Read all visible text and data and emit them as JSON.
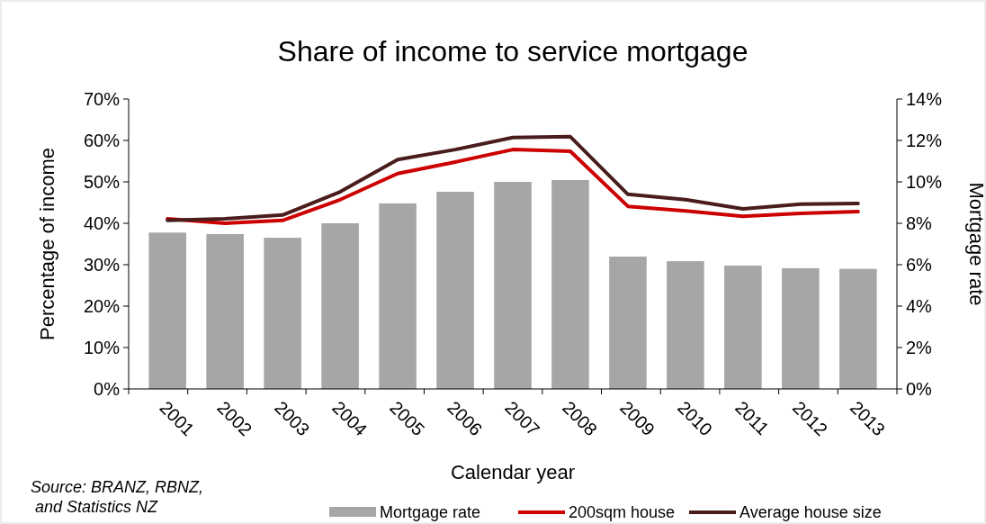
{
  "chart_data": {
    "type": "bar",
    "title": "Share of income to service mortgage",
    "xlabel": "Calendar year",
    "ylabel": "Percentage of income",
    "y2label": "Mortgage rate",
    "annotations": [
      "Source: BRANZ, RBNZ,\n and Statistics NZ"
    ],
    "categories": [
      "2001",
      "2002",
      "2003",
      "2004",
      "2005",
      "2006",
      "2007",
      "2008",
      "2009",
      "2010",
      "2011",
      "2012",
      "2013"
    ],
    "series": [
      {
        "name": "Mortgage rate",
        "axis": "y2",
        "color": "#a6a6a6",
        "values": [
          7.55,
          7.48,
          7.3,
          8.0,
          8.96,
          9.52,
          10.0,
          10.09,
          6.39,
          6.17,
          5.96,
          5.83,
          5.8
        ]
      },
      {
        "name": "200sqm house",
        "type": "line",
        "color": "#cc0000",
        "values": [
          41.1,
          40.0,
          40.7,
          45.7,
          52.0,
          54.8,
          57.8,
          57.4,
          44.1,
          43.0,
          41.7,
          42.4,
          42.8
        ]
      },
      {
        "name": "Average house size",
        "type": "line",
        "color": "#4a1c1c",
        "values": [
          40.7,
          41.1,
          42.0,
          47.6,
          55.4,
          57.8,
          60.7,
          60.9,
          47.0,
          45.7,
          43.5,
          44.6,
          44.8
        ]
      }
    ],
    "ylim": [
      0,
      70
    ],
    "yticks": [
      {
        "value": 0,
        "label": "0%"
      },
      {
        "value": 10,
        "label": "10%"
      },
      {
        "value": 20,
        "label": "20%"
      },
      {
        "value": 30,
        "label": "30%"
      },
      {
        "value": 40,
        "label": "40%"
      },
      {
        "value": 50,
        "label": "50%"
      },
      {
        "value": 60,
        "label": "60%"
      },
      {
        "value": 70,
        "label": "70%"
      }
    ],
    "y2lim": [
      0,
      14
    ],
    "y2ticks": [
      {
        "value": 0,
        "label": "0%"
      },
      {
        "value": 2,
        "label": "2%"
      },
      {
        "value": 4,
        "label": "4%"
      },
      {
        "value": 6,
        "label": "6%"
      },
      {
        "value": 8,
        "label": "8%"
      },
      {
        "value": 10,
        "label": "10%"
      },
      {
        "value": 12,
        "label": "12%"
      },
      {
        "value": 14,
        "label": "14%"
      }
    ],
    "grid": false,
    "legend": "bottom"
  }
}
